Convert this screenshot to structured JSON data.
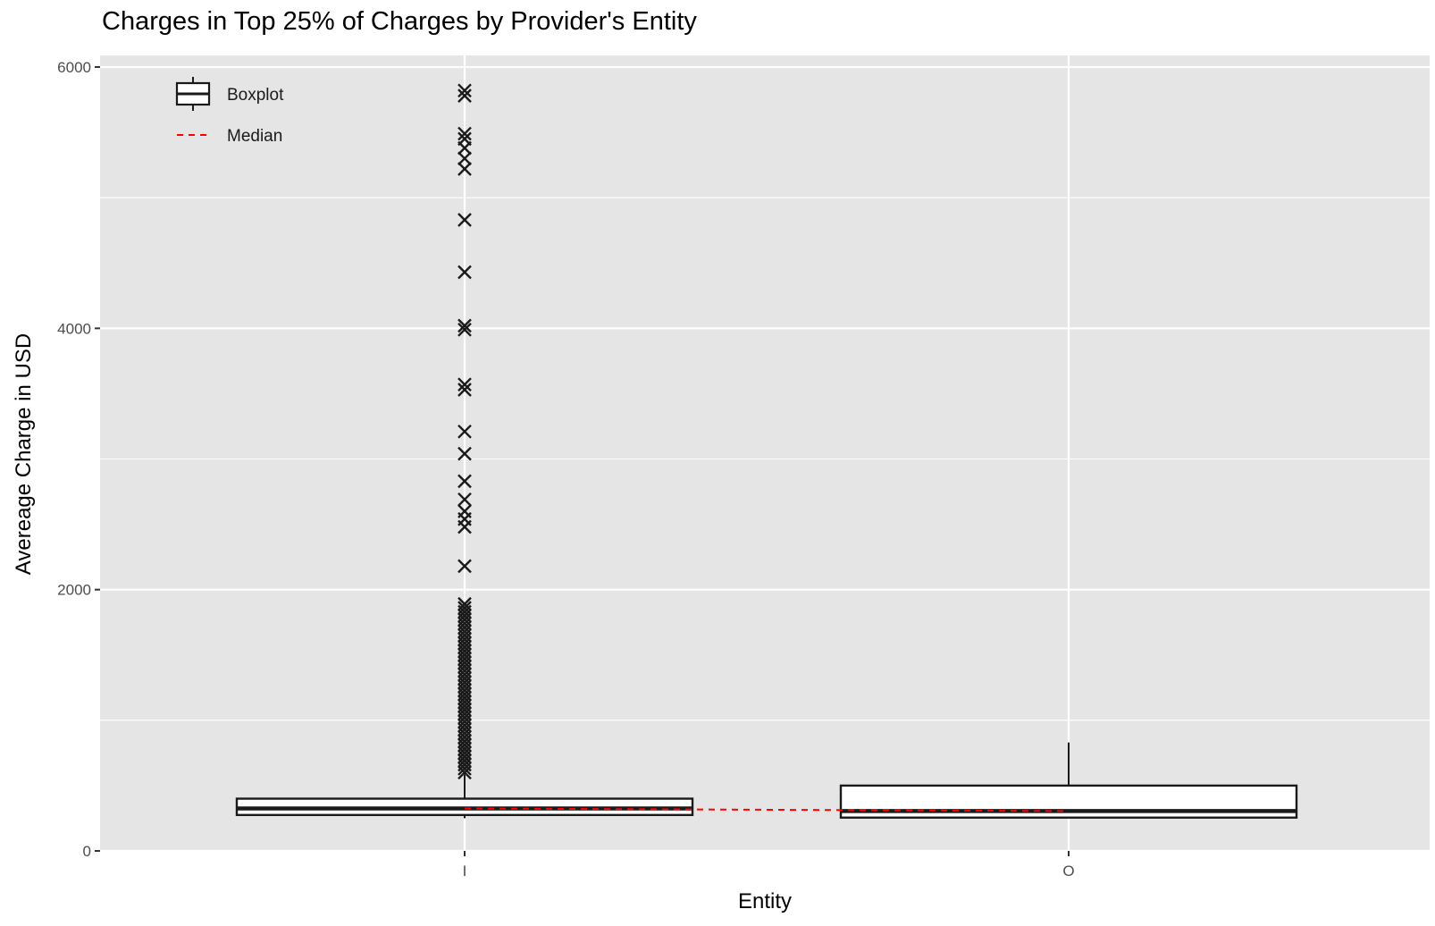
{
  "chart_data": {
    "type": "box",
    "title": "Charges in Top 25% of Charges by Provider's Entity",
    "xlabel": "Entity",
    "ylabel": "Avereage Charge in USD",
    "categories": [
      "I",
      "O"
    ],
    "ylim": [
      -100,
      6100
    ],
    "yticks": [
      0,
      2000,
      4000,
      6000
    ],
    "ytick_labels": [
      "0",
      "2000",
      "4000",
      "6000"
    ],
    "grid": true,
    "legend": {
      "position": "top-left",
      "entries": [
        {
          "label": "Boxplot",
          "kind": "box"
        },
        {
          "label": "Median",
          "kind": "dashed-line",
          "color": "#ff0000"
        }
      ]
    },
    "boxes": [
      {
        "category": "I",
        "q1": 275,
        "median": 325,
        "q3": 400,
        "whisker_low": 250,
        "whisker_high": 585
      },
      {
        "category": "O",
        "q1": 255,
        "median": 305,
        "q3": 500,
        "whisker_low": 250,
        "whisker_high": 830
      }
    ],
    "median_line": {
      "color": "#ff0000",
      "values": [
        325,
        305
      ]
    },
    "outliers": {
      "category": "I",
      "marker": "x",
      "values": [
        5820,
        5780,
        5490,
        5450,
        5380,
        5300,
        5220,
        4830,
        4430,
        4020,
        3990,
        3570,
        3530,
        3210,
        3040,
        2830,
        2690,
        2600,
        2540,
        2480,
        2180,
        1890,
        1860,
        1830,
        1800,
        1770,
        1740,
        1710,
        1680,
        1650,
        1620,
        1590,
        1560,
        1530,
        1500,
        1470,
        1440,
        1410,
        1380,
        1350,
        1320,
        1290,
        1260,
        1230,
        1200,
        1170,
        1140,
        1110,
        1080,
        1050,
        1020,
        990,
        960,
        930,
        900,
        870,
        840,
        810,
        780,
        750,
        720,
        690,
        660,
        630,
        600
      ]
    },
    "colors": {
      "panel": "#e5e5e5",
      "grid": "#ffffff",
      "box_fill": "#ffffff",
      "box_stroke": "#1a1a1a",
      "median_line": "#ff0000"
    }
  }
}
